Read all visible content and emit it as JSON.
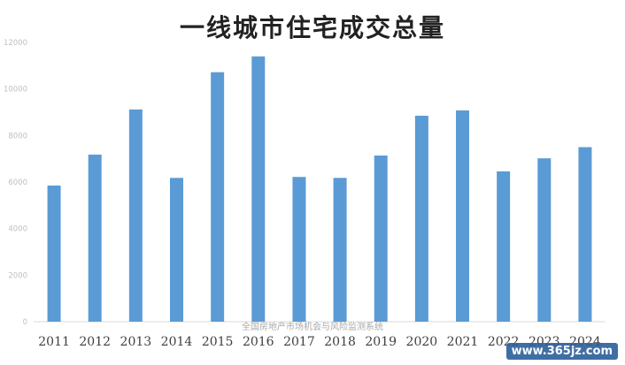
{
  "title": "一线城市住宅成交总量",
  "watermark": "全国房地产市场机会与风险监测系统",
  "corner_watermark": "www.365jz.com",
  "colors": {
    "bar": "#5b9bd5",
    "axis": "#d9d9d9",
    "tick_text": "#bfbfbf",
    "category_text": "#404040"
  },
  "chart_data": {
    "type": "bar",
    "title": "一线城市住宅成交总量",
    "xlabel": "",
    "ylabel": "",
    "categories": [
      "2011",
      "2012",
      "2013",
      "2014",
      "2015",
      "2016",
      "2017",
      "2018",
      "2019",
      "2020",
      "2021",
      "2022",
      "2023",
      "2024"
    ],
    "values": [
      5850,
      7180,
      9120,
      6180,
      10720,
      11400,
      6220,
      6180,
      7140,
      8850,
      9080,
      6460,
      7020,
      7500
    ],
    "ylim": [
      0,
      12000
    ],
    "yticks": [
      "0",
      "2000",
      "4000",
      "6000",
      "8000",
      "10000",
      "12000"
    ],
    "grid": false,
    "legend": "none"
  }
}
